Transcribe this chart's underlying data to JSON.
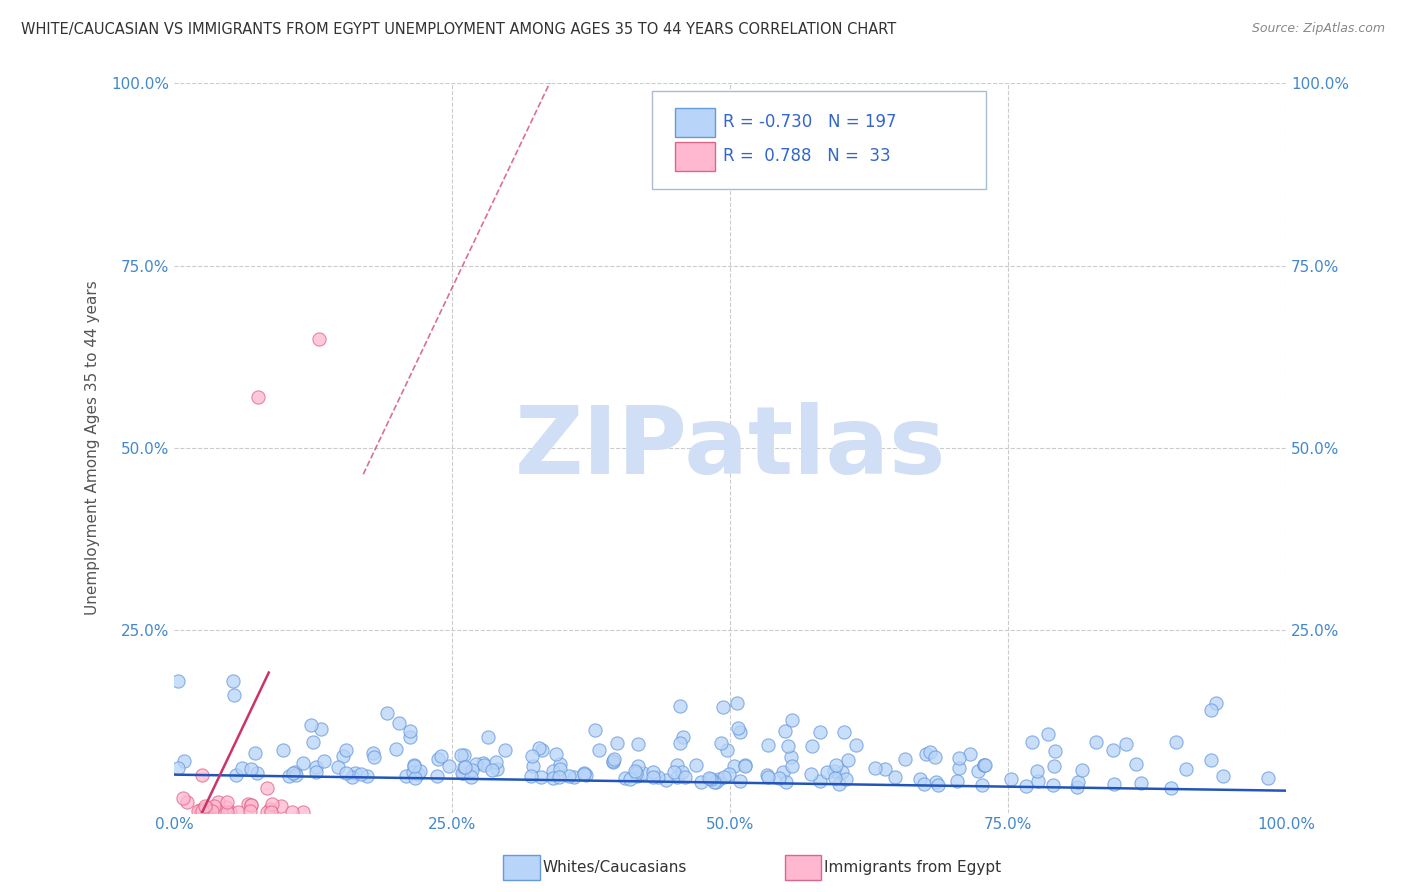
{
  "title": "WHITE/CAUCASIAN VS IMMIGRANTS FROM EGYPT UNEMPLOYMENT AMONG AGES 35 TO 44 YEARS CORRELATION CHART",
  "source": "Source: ZipAtlas.com",
  "ylabel": "Unemployment Among Ages 35 to 44 years",
  "xlim": [
    0,
    1.0
  ],
  "ylim": [
    0,
    1.0
  ],
  "xticks": [
    0.0,
    0.25,
    0.5,
    0.75,
    1.0
  ],
  "yticks": [
    0.0,
    0.25,
    0.5,
    0.75,
    1.0
  ],
  "xticklabels": [
    "0.0%",
    "25.0%",
    "50.0%",
    "75.0%",
    "100.0%"
  ],
  "yticklabels": [
    "",
    "25.0%",
    "50.0%",
    "75.0%",
    "100.0%"
  ],
  "right_yticklabels": [
    "",
    "25.0%",
    "50.0%",
    "75.0%",
    "100.0%"
  ],
  "blue_R": -0.73,
  "blue_N": 197,
  "pink_R": 0.788,
  "pink_N": 33,
  "blue_scatter_face": "#B8D4F8",
  "blue_scatter_edge": "#6699DD",
  "pink_scatter_face": "#FFB8D0",
  "pink_scatter_edge": "#DD6688",
  "blue_line_color": "#2255BB",
  "pink_line_color": "#CC3366",
  "watermark_color": "#D0DFF5",
  "watermark_text": "ZIPatlas",
  "legend_label_blue": "Whites/Caucasians",
  "legend_label_pink": "Immigrants from Egypt",
  "background_color": "#FFFFFF",
  "grid_color": "#CCCCCC",
  "title_color": "#333333",
  "axis_label_color": "#555555",
  "tick_color": "#4488CC",
  "seed": 42,
  "blue_trend_intercept": 0.052,
  "blue_trend_slope": -0.022,
  "pink_trend_intercept": -0.08,
  "pink_trend_slope": 3.2
}
